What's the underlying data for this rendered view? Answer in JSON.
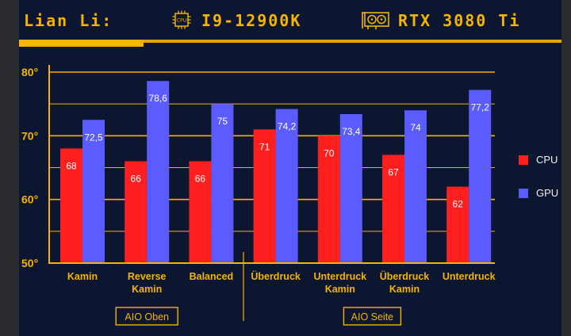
{
  "header": {
    "brand": "Lian Li:",
    "cpu": "I9-12900K",
    "cpu_icon_text": "CPU",
    "gpu": "RTX 3080 Ti"
  },
  "progress": 0.23,
  "colors": {
    "cpu": "#ff1f1f",
    "gpu": "#5a5cff",
    "accent": "#f4b400",
    "background": "#0d1630"
  },
  "chart_data": {
    "type": "bar",
    "categories": [
      [
        "Kamin"
      ],
      [
        "Reverse",
        "Kamin"
      ],
      [
        "Balanced"
      ],
      [
        "Überdruck"
      ],
      [
        "Unterdruck",
        "Kamin"
      ],
      [
        "Überdruck",
        "Kamin"
      ],
      [
        "Unterdruck"
      ]
    ],
    "series": [
      {
        "name": "CPU",
        "values": [
          68,
          66,
          66,
          71,
          70,
          67,
          62
        ],
        "labels": [
          "68",
          "66",
          "66",
          "71",
          "70",
          "67",
          "62"
        ]
      },
      {
        "name": "GPU",
        "values": [
          72.5,
          78.6,
          75,
          74.2,
          73.4,
          74,
          77.2
        ],
        "labels": [
          "72,5",
          "78,6",
          "75",
          "74,2",
          "73,4",
          "74",
          "77,2"
        ]
      }
    ],
    "ylim": [
      50,
      80
    ],
    "yticks": [
      50,
      60,
      70,
      80
    ],
    "ytick_labels": [
      "50°",
      "60°",
      "70°",
      "80°"
    ],
    "grid": true,
    "legend": "right",
    "groups": [
      {
        "label": "AIO Oben",
        "categories": [
          0,
          1,
          2
        ]
      },
      {
        "label": "AIO Seite",
        "categories": [
          3,
          4,
          5,
          6
        ]
      }
    ]
  }
}
